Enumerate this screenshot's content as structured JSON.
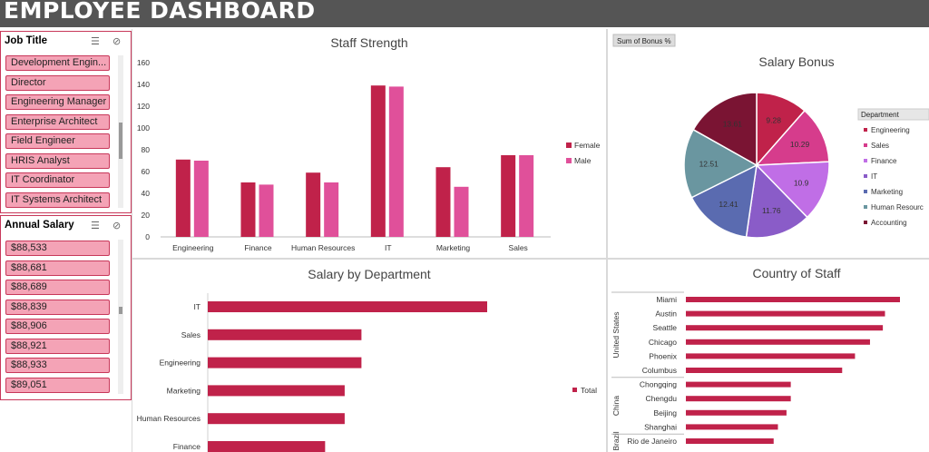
{
  "header": {
    "title": "EMPLOYEE DASHBOARD"
  },
  "slicers": {
    "job_title": {
      "label": "Job Title",
      "items": [
        "Development Engin...",
        "Director",
        "Engineering Manager",
        "Enterprise Architect",
        "Field Engineer",
        "HRIS Analyst",
        "IT Coordinator",
        "IT Systems Architect"
      ]
    },
    "annual_salary": {
      "label": "Annual Salary",
      "items": [
        "$88,533",
        "$88,681",
        "$88,689",
        "$88,839",
        "$88,906",
        "$88,921",
        "$88,933",
        "$89,051"
      ]
    }
  },
  "colors": {
    "primary": "#c0224a",
    "secondary": "#e0509a",
    "header": "#555555"
  },
  "chart_data": [
    {
      "id": "staff_strength",
      "type": "bar",
      "title": "Staff Strength",
      "categories": [
        "Engineering",
        "Finance",
        "Human Resources",
        "IT",
        "Marketing",
        "Sales"
      ],
      "series": [
        {
          "name": "Female",
          "color": "#c0224a",
          "values": [
            71,
            50,
            59,
            139,
            64,
            75
          ]
        },
        {
          "name": "Male",
          "color": "#e0509a",
          "values": [
            70,
            48,
            50,
            138,
            46,
            75
          ]
        }
      ],
      "yticks": [
        "0",
        "20",
        "40",
        "60",
        "80",
        "100",
        "120",
        "140",
        "160"
      ],
      "ylim": [
        0,
        160
      ],
      "legend": "right"
    },
    {
      "id": "salary_bonus",
      "type": "pie",
      "title": "Salary Bonus",
      "field_button": "Sum of Bonus %",
      "legend_title": "Department",
      "categories": [
        "Engineering",
        "Sales",
        "Finance",
        "IT",
        "Marketing",
        "Human Resources",
        "Accounting"
      ],
      "legend_labels": [
        "Engineering",
        "Sales",
        "Finance",
        "IT",
        "Marketing",
        "Human Resourc",
        "Accounting"
      ],
      "values": [
        9.28,
        10.29,
        10.9,
        11.76,
        12.41,
        12.51,
        13.61
      ],
      "value_labels": [
        "9.28",
        "10.29",
        "10.9",
        "11.76",
        "12.41",
        "12.51",
        "13.61"
      ],
      "colors": [
        "#c0224a",
        "#d63c8c",
        "#c06ee6",
        "#8a5cc8",
        "#5a6bb0",
        "#6a96a0",
        "#7a1433"
      ]
    },
    {
      "id": "salary_by_department",
      "type": "bar",
      "orientation": "horizontal",
      "title": "Salary by Department",
      "categories": [
        "IT",
        "Sales",
        "Engineering",
        "Marketing",
        "Human Resources",
        "Finance"
      ],
      "values": [
        100,
        55,
        55,
        49,
        49,
        42
      ],
      "legend_entry": "Total",
      "legend": "right"
    },
    {
      "id": "country_of_staff",
      "type": "bar",
      "orientation": "horizontal",
      "title": "Country of Staff",
      "groups": [
        {
          "name": "United States",
          "cities": [
            "Miami",
            "Austin",
            "Seattle",
            "Chicago",
            "Phoenix",
            "Columbus"
          ],
          "values": [
            100,
            93,
            92,
            86,
            79,
            73
          ]
        },
        {
          "name": "China",
          "cities": [
            "Chongqing",
            "Chengdu",
            "Beijing",
            "Shanghai"
          ],
          "values": [
            49,
            49,
            47,
            43
          ]
        },
        {
          "name": "Brazil",
          "cities": [
            "Rio de Janeiro"
          ],
          "values": [
            41
          ]
        }
      ]
    }
  ]
}
